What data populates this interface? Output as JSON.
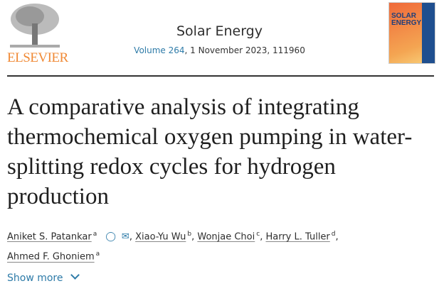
{
  "publisher": {
    "logo_text": "ELSEVIER"
  },
  "journal": {
    "title": "Solar Energy",
    "volume_link": "Volume 264",
    "issue_rest": ", 1 November 2023, 111960",
    "cover_text": "SOLAR ENERGY"
  },
  "article": {
    "title": "A comparative analysis of integrating thermochemical oxygen pumping in water-splitting redox cycles for hydrogen production"
  },
  "authors": [
    {
      "name": "Aniket S. Patankar",
      "aff": "a"
    },
    {
      "name": "Xiao-Yu Wu",
      "aff": "b"
    },
    {
      "name": "Wonjae Choi",
      "aff": "c"
    },
    {
      "name": "Harry L. Tuller",
      "aff": "d"
    },
    {
      "name": "Ahmed F. Ghoniem",
      "aff": "a"
    }
  ],
  "show_more": "Show more",
  "colors": {
    "link": "#2e7ba8",
    "elsevier": "#f08a36"
  }
}
